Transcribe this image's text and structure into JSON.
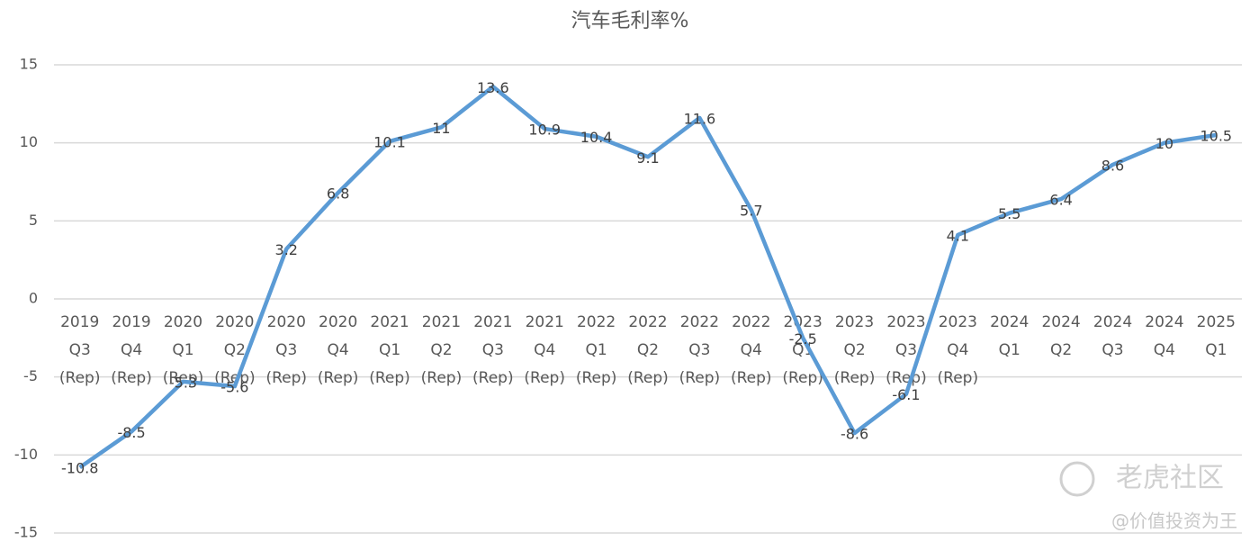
{
  "chart_data": {
    "type": "line",
    "title": "汽车毛利率%",
    "categories": [
      [
        "2019",
        "Q3",
        "(Rep)"
      ],
      [
        "2019",
        "Q4",
        "(Rep)"
      ],
      [
        "2020",
        "Q1",
        "(Rep)"
      ],
      [
        "2020",
        "Q2",
        "(Rep)"
      ],
      [
        "2020",
        "Q3",
        "(Rep)"
      ],
      [
        "2020",
        "Q4",
        "(Rep)"
      ],
      [
        "2021",
        "Q1",
        "(Rep)"
      ],
      [
        "2021",
        "Q2",
        "(Rep)"
      ],
      [
        "2021",
        "Q3",
        "(Rep)"
      ],
      [
        "2021",
        "Q4",
        "(Rep)"
      ],
      [
        "2022",
        "Q1",
        "(Rep)"
      ],
      [
        "2022",
        "Q2",
        "(Rep)"
      ],
      [
        "2022",
        "Q3",
        "(Rep)"
      ],
      [
        "2022",
        "Q4",
        "(Rep)"
      ],
      [
        "2023",
        "Q1",
        "(Rep)"
      ],
      [
        "2023",
        "Q2",
        "(Rep)"
      ],
      [
        "2023",
        "Q3",
        "(Rep)"
      ],
      [
        "2023",
        "Q4",
        "(Rep)"
      ],
      [
        "2024",
        "Q1"
      ],
      [
        "2024",
        "Q2"
      ],
      [
        "2024",
        "Q3"
      ],
      [
        "2024",
        "Q4"
      ],
      [
        "2025",
        "Q1"
      ]
    ],
    "values": [
      -10.8,
      -8.5,
      -5.3,
      -5.6,
      3.2,
      6.8,
      10.1,
      11,
      13.6,
      10.9,
      10.4,
      9.1,
      11.6,
      5.7,
      -2.5,
      -8.6,
      -6.1,
      4.1,
      5.5,
      6.4,
      8.6,
      10,
      10.5
    ],
    "color": "#5b9bd5",
    "ylim": [
      -15,
      15
    ],
    "yticks": [
      -15,
      -10,
      -5,
      0,
      5,
      10,
      15
    ],
    "grid": true
  },
  "watermark": {
    "logo": "老虎社区",
    "author": "@价值投资为王"
  }
}
